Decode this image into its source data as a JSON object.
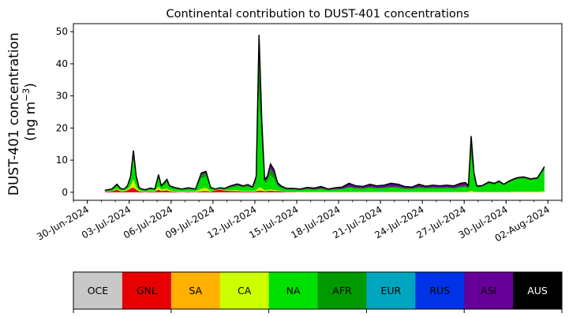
{
  "chart_data": {
    "type": "area",
    "title": "Continental contribution to DUST-401 concentrations",
    "ylabel_main": "DUST-401 concentration",
    "ylabel_unit_prefix": "(ng m",
    "ylabel_unit_sup": "−3",
    "ylabel_unit_suffix": ")",
    "xlabel": "",
    "stacked": true,
    "x_axis": {
      "type": "date",
      "range": [
        "2024-06-29",
        "2024-08-03"
      ],
      "tick_labels": [
        "30-Jun-2024",
        "03-Jul-2024",
        "06-Jul-2024",
        "09-Jul-2024",
        "12-Jul-2024",
        "15-Jul-2024",
        "18-Jul-2024",
        "21-Jul-2024",
        "24-Jul-2024",
        "27-Jul-2024",
        "30-Jul-2024",
        "02-Aug-2024"
      ],
      "tick_dates": [
        "2024-06-30",
        "2024-07-03",
        "2024-07-06",
        "2024-07-09",
        "2024-07-12",
        "2024-07-15",
        "2024-07-18",
        "2024-07-21",
        "2024-07-24",
        "2024-07-27",
        "2024-07-30",
        "2024-08-02"
      ],
      "minor_ticks": "daily"
    },
    "y_axis": {
      "range": [
        -2.5,
        52.5
      ],
      "ticks": [
        0,
        10,
        20,
        30,
        40,
        50
      ],
      "tick_labels": [
        "0",
        "10",
        "20",
        "30",
        "40",
        "50"
      ]
    },
    "grid": false,
    "x": [
      "2024-07-01",
      "2024-07-01",
      "2024-07-02",
      "2024-07-02",
      "2024-07-02",
      "2024-07-02",
      "2024-07-03",
      "2024-07-03",
      "2024-07-03",
      "2024-07-03",
      "2024-07-03",
      "2024-07-04",
      "2024-07-04",
      "2024-07-04",
      "2024-07-05",
      "2024-07-05",
      "2024-07-05",
      "2024-07-05",
      "2024-07-05",
      "2024-07-06",
      "2024-07-06",
      "2024-07-07",
      "2024-07-07",
      "2024-07-08",
      "2024-07-08",
      "2024-07-08",
      "2024-07-09",
      "2024-07-09",
      "2024-07-09",
      "2024-07-10",
      "2024-07-10",
      "2024-07-11",
      "2024-07-11",
      "2024-07-11",
      "2024-07-12",
      "2024-07-12",
      "2024-07-12",
      "2024-07-12",
      "2024-07-12",
      "2024-07-13",
      "2024-07-13",
      "2024-07-13",
      "2024-07-13",
      "2024-07-14",
      "2024-07-14",
      "2024-07-15",
      "2024-07-15",
      "2024-07-16",
      "2024-07-16",
      "2024-07-17",
      "2024-07-17",
      "2024-07-18",
      "2024-07-18",
      "2024-07-19",
      "2024-07-19",
      "2024-07-20",
      "2024-07-20",
      "2024-07-21",
      "2024-07-21",
      "2024-07-22",
      "2024-07-22",
      "2024-07-23",
      "2024-07-23",
      "2024-07-24",
      "2024-07-24",
      "2024-07-25",
      "2024-07-25",
      "2024-07-26",
      "2024-07-26",
      "2024-07-27",
      "2024-07-27",
      "2024-07-27",
      "2024-07-27",
      "2024-07-27",
      "2024-07-28",
      "2024-07-28",
      "2024-07-29",
      "2024-07-29",
      "2024-07-29",
      "2024-07-30",
      "2024-07-30",
      "2024-07-31",
      "2024-07-31",
      "2024-08-01",
      "2024-08-01"
    ],
    "total": [
      0.6,
      1.0,
      2.5,
      1.2,
      1.0,
      2.0,
      5.0,
      13.0,
      5.0,
      1.5,
      1.0,
      0.8,
      1.3,
      1.0,
      5.5,
      2.0,
      3.0,
      4.0,
      2.0,
      1.5,
      1.0,
      1.4,
      1.0,
      6.0,
      6.5,
      1.5,
      1.0,
      1.4,
      1.2,
      2.0,
      2.6,
      2.0,
      2.4,
      1.6,
      5.0,
      49.0,
      22.0,
      4.0,
      5.0,
      8.8,
      7.0,
      3.0,
      2.0,
      1.2,
      1.2,
      1.0,
      1.5,
      1.3,
      1.8,
      1.0,
      1.4,
      1.6,
      2.8,
      2.0,
      1.8,
      2.5,
      2.0,
      2.2,
      2.8,
      2.5,
      1.8,
      1.6,
      2.5,
      1.9,
      2.2,
      2.0,
      2.2,
      2.0,
      2.8,
      3.0,
      2.0,
      17.5,
      6.0,
      2.0,
      2.0,
      3.2,
      2.8,
      3.5,
      2.5,
      3.6,
      4.5,
      4.8,
      4.2,
      4.5,
      8.0
    ],
    "series": [
      {
        "name": "OCE",
        "color": "#c8c8c8",
        "values": [
          0.0,
          0.0,
          0.0,
          0.0,
          0.0,
          0.0,
          0.0,
          0.0,
          0.0,
          0.0,
          0.0,
          0.0,
          0.0,
          0.0,
          0.0,
          0.0,
          0.0,
          0.0,
          0.0,
          0.0,
          0.0,
          0.0,
          0.0,
          0.0,
          0.0,
          0.0,
          0.0,
          0.0,
          0.0,
          0.0,
          0.0,
          0.0,
          0.0,
          0.0,
          0.0,
          0.0,
          0.0,
          0.0,
          0.0,
          0.0,
          0.0,
          0.0,
          0.0,
          0.0,
          0.0,
          0.0,
          0.0,
          0.0,
          0.0,
          0.0,
          0.0,
          0.0,
          0.0,
          0.0,
          0.0,
          0.0,
          0.0,
          0.0,
          0.0,
          0.0,
          0.0,
          0.0,
          0.0,
          0.0,
          0.0,
          0.0,
          0.0,
          0.0,
          0.0,
          0.0,
          0.0,
          0.0,
          0.0,
          0.0,
          0.0,
          0.0,
          0.0,
          0.0,
          0.0,
          0.0,
          0.0,
          0.0,
          0.0,
          0.0,
          0.0
        ]
      },
      {
        "name": "GNL",
        "color": "#e60000",
        "values": [
          0.15,
          0.3,
          0.8,
          0.3,
          0.3,
          0.6,
          1.2,
          1.5,
          0.8,
          0.3,
          0.2,
          0.1,
          0.3,
          0.2,
          0.8,
          0.4,
          0.5,
          0.6,
          0.3,
          0.2,
          0.1,
          0.2,
          0.1,
          0.3,
          0.4,
          0.2,
          0.6,
          0.8,
          0.5,
          0.4,
          0.4,
          0.2,
          0.3,
          0.2,
          0.3,
          0.5,
          0.5,
          0.3,
          0.4,
          0.5,
          0.4,
          0.4,
          0.3,
          0.1,
          0.1,
          0.0,
          0.0,
          0.0,
          0.0,
          0.0,
          0.0,
          0.0,
          0.0,
          0.0,
          0.0,
          0.0,
          0.0,
          0.0,
          0.0,
          0.0,
          0.0,
          0.0,
          0.0,
          0.0,
          0.0,
          0.0,
          0.0,
          0.0,
          0.0,
          0.0,
          0.0,
          0.0,
          0.0,
          0.0,
          0.0,
          0.0,
          0.0,
          0.0,
          0.0,
          0.0,
          0.0,
          0.0,
          0.0,
          0.0,
          0.0
        ]
      },
      {
        "name": "SA",
        "color": "#ffb000",
        "values": [
          0.0,
          0.0,
          0.0,
          0.0,
          0.0,
          0.0,
          0.0,
          0.0,
          0.0,
          0.0,
          0.0,
          0.0,
          0.0,
          0.0,
          0.0,
          0.0,
          0.0,
          0.0,
          0.0,
          0.0,
          0.0,
          0.0,
          0.0,
          0.0,
          0.0,
          0.0,
          0.0,
          0.0,
          0.0,
          0.0,
          0.0,
          0.0,
          0.0,
          0.0,
          0.0,
          0.0,
          0.0,
          0.0,
          0.0,
          0.0,
          0.0,
          0.0,
          0.0,
          0.0,
          0.0,
          0.0,
          0.0,
          0.0,
          0.0,
          0.0,
          0.0,
          0.0,
          0.0,
          0.0,
          0.0,
          0.0,
          0.0,
          0.0,
          0.0,
          0.0,
          0.0,
          0.0,
          0.0,
          0.0,
          0.0,
          0.0,
          0.0,
          0.0,
          0.0,
          0.0,
          0.0,
          0.0,
          0.0,
          0.0,
          0.0,
          0.0,
          0.0,
          0.0,
          0.0,
          0.0,
          0.0,
          0.0,
          0.0,
          0.0,
          0.0
        ]
      },
      {
        "name": "CA",
        "color": "#ccff00",
        "values": [
          0.1,
          0.1,
          0.3,
          0.2,
          0.2,
          0.3,
          0.8,
          2.5,
          0.8,
          0.2,
          0.2,
          0.1,
          0.2,
          0.2,
          1.0,
          0.4,
          0.5,
          0.6,
          0.3,
          0.2,
          0.2,
          0.2,
          0.2,
          0.8,
          1.0,
          0.2,
          0.1,
          0.1,
          0.1,
          0.2,
          0.3,
          0.2,
          0.2,
          0.2,
          0.3,
          1.0,
          0.8,
          0.3,
          0.3,
          0.4,
          0.3,
          0.2,
          0.1,
          0.1,
          0.1,
          0.1,
          0.1,
          0.1,
          0.1,
          0.1,
          0.1,
          0.1,
          0.1,
          0.1,
          0.1,
          0.1,
          0.1,
          0.1,
          0.1,
          0.1,
          0.1,
          0.1,
          0.1,
          0.1,
          0.1,
          0.1,
          0.1,
          0.1,
          0.1,
          0.1,
          0.1,
          0.5,
          0.2,
          0.1,
          0.1,
          0.1,
          0.1,
          0.1,
          0.1,
          0.1,
          0.2,
          0.2,
          0.2,
          0.2,
          0.3
        ]
      },
      {
        "name": "NA",
        "color": "#00e000",
        "values": [
          0.2,
          0.4,
          0.9,
          0.4,
          0.3,
          0.7,
          2.0,
          6.5,
          2.2,
          0.6,
          0.4,
          0.4,
          0.5,
          0.4,
          2.5,
          0.8,
          1.3,
          1.8,
          0.9,
          0.7,
          0.4,
          0.6,
          0.4,
          3.2,
          3.5,
          0.7,
          0.2,
          0.3,
          0.3,
          0.8,
          1.2,
          1.1,
          1.3,
          0.8,
          2.5,
          30.0,
          13.0,
          2.2,
          2.6,
          4.5,
          3.5,
          1.4,
          0.9,
          0.6,
          0.6,
          0.5,
          0.8,
          0.6,
          0.9,
          0.5,
          0.7,
          0.8,
          1.3,
          1.0,
          0.9,
          1.2,
          1.0,
          1.1,
          1.3,
          1.2,
          0.9,
          0.8,
          1.2,
          1.0,
          1.1,
          1.0,
          1.1,
          1.0,
          1.4,
          1.5,
          1.0,
          11.0,
          3.8,
          1.4,
          1.5,
          2.6,
          2.2,
          2.9,
          2.0,
          3.0,
          3.8,
          4.1,
          3.5,
          3.8,
          6.8
        ]
      },
      {
        "name": "AFR",
        "color": "#009900",
        "values": [
          0.1,
          0.1,
          0.3,
          0.2,
          0.1,
          0.3,
          0.8,
          2.0,
          0.9,
          0.3,
          0.1,
          0.1,
          0.2,
          0.1,
          0.8,
          0.3,
          0.4,
          0.6,
          0.3,
          0.2,
          0.2,
          0.2,
          0.2,
          1.2,
          1.0,
          0.2,
          0.1,
          0.1,
          0.1,
          0.3,
          0.4,
          0.3,
          0.4,
          0.2,
          1.0,
          12.0,
          5.0,
          0.7,
          0.9,
          2.0,
          1.5,
          0.5,
          0.3,
          0.2,
          0.2,
          0.2,
          0.3,
          0.2,
          0.3,
          0.2,
          0.2,
          0.2,
          0.4,
          0.3,
          0.3,
          0.4,
          0.3,
          0.3,
          0.4,
          0.4,
          0.3,
          0.3,
          0.4,
          0.3,
          0.4,
          0.4,
          0.4,
          0.3,
          0.4,
          0.5,
          0.4,
          4.5,
          1.2,
          0.3,
          0.2,
          0.3,
          0.3,
          0.3,
          0.2,
          0.3,
          0.3,
          0.3,
          0.3,
          0.3,
          0.5
        ]
      },
      {
        "name": "EUR",
        "color": "#00a6bf",
        "values": [
          0.0,
          0.0,
          0.0,
          0.0,
          0.0,
          0.0,
          0.0,
          0.0,
          0.0,
          0.0,
          0.0,
          0.0,
          0.0,
          0.0,
          0.0,
          0.0,
          0.0,
          0.0,
          0.0,
          0.0,
          0.0,
          0.0,
          0.0,
          0.0,
          0.0,
          0.0,
          0.0,
          0.0,
          0.0,
          0.0,
          0.0,
          0.0,
          0.0,
          0.0,
          0.0,
          0.0,
          0.0,
          0.0,
          0.0,
          0.0,
          0.0,
          0.0,
          0.0,
          0.0,
          0.0,
          0.0,
          0.0,
          0.0,
          0.0,
          0.0,
          0.0,
          0.0,
          0.0,
          0.0,
          0.0,
          0.0,
          0.0,
          0.0,
          0.0,
          0.0,
          0.0,
          0.0,
          0.0,
          0.0,
          0.0,
          0.0,
          0.0,
          0.0,
          0.0,
          0.0,
          0.0,
          0.0,
          0.0,
          0.0,
          0.0,
          0.0,
          0.0,
          0.0,
          0.0,
          0.0,
          0.0,
          0.0,
          0.0,
          0.0,
          0.0
        ]
      },
      {
        "name": "RUS",
        "color": "#0033e6",
        "values": [
          0.0,
          0.0,
          0.0,
          0.0,
          0.0,
          0.0,
          0.0,
          0.0,
          0.0,
          0.0,
          0.0,
          0.0,
          0.0,
          0.0,
          0.0,
          0.0,
          0.0,
          0.0,
          0.0,
          0.0,
          0.0,
          0.0,
          0.0,
          0.0,
          0.0,
          0.0,
          0.0,
          0.0,
          0.0,
          0.0,
          0.0,
          0.0,
          0.0,
          0.0,
          0.0,
          0.0,
          0.0,
          0.0,
          0.0,
          0.0,
          0.0,
          0.0,
          0.0,
          0.0,
          0.0,
          0.0,
          0.0,
          0.0,
          0.0,
          0.0,
          0.0,
          0.0,
          0.0,
          0.0,
          0.0,
          0.0,
          0.0,
          0.0,
          0.0,
          0.0,
          0.0,
          0.0,
          0.0,
          0.0,
          0.0,
          0.0,
          0.0,
          0.0,
          0.0,
          0.0,
          0.0,
          0.0,
          0.0,
          0.0,
          0.0,
          0.0,
          0.0,
          0.0,
          0.0,
          0.0,
          0.0,
          0.0,
          0.0,
          0.0,
          0.0
        ]
      },
      {
        "name": "ASI",
        "color": "#660099",
        "values": [
          0.05,
          0.1,
          0.2,
          0.1,
          0.1,
          0.1,
          0.2,
          0.5,
          0.3,
          0.1,
          0.1,
          0.1,
          0.1,
          0.1,
          0.4,
          0.1,
          0.3,
          0.4,
          0.2,
          0.2,
          0.1,
          0.2,
          0.1,
          0.5,
          0.6,
          0.2,
          0.0,
          0.1,
          0.2,
          0.3,
          0.3,
          0.2,
          0.2,
          0.2,
          0.9,
          5.5,
          2.7,
          0.5,
          0.8,
          1.4,
          1.3,
          0.5,
          0.4,
          0.2,
          0.2,
          0.2,
          0.3,
          0.4,
          0.5,
          0.2,
          0.4,
          0.5,
          1.0,
          0.6,
          0.5,
          0.8,
          0.6,
          0.7,
          1.0,
          0.8,
          0.5,
          0.4,
          0.8,
          0.5,
          0.6,
          0.5,
          0.6,
          0.6,
          0.9,
          0.9,
          0.5,
          1.5,
          0.8,
          0.2,
          0.2,
          0.2,
          0.2,
          0.2,
          0.2,
          0.2,
          0.2,
          0.2,
          0.2,
          0.2,
          0.4
        ]
      },
      {
        "name": "AUS",
        "color": "#000000",
        "values": [
          0.0,
          0.0,
          0.0,
          0.0,
          0.0,
          0.0,
          0.0,
          0.0,
          0.0,
          0.0,
          0.0,
          0.0,
          0.0,
          0.0,
          0.0,
          0.0,
          0.0,
          0.0,
          0.0,
          0.0,
          0.0,
          0.0,
          0.0,
          0.0,
          0.0,
          0.0,
          0.0,
          0.0,
          0.0,
          0.0,
          0.0,
          0.0,
          0.0,
          0.0,
          0.0,
          0.0,
          0.0,
          0.0,
          0.0,
          0.0,
          0.0,
          0.0,
          0.0,
          0.0,
          0.0,
          0.0,
          0.0,
          0.0,
          0.0,
          0.0,
          0.0,
          0.0,
          0.0,
          0.0,
          0.0,
          0.0,
          0.0,
          0.0,
          0.0,
          0.0,
          0.0,
          0.0,
          0.0,
          0.0,
          0.0,
          0.0,
          0.0,
          0.0,
          0.0,
          0.0,
          0.0,
          0.0,
          0.0,
          0.0,
          0.0,
          0.0,
          0.0,
          0.0,
          0.0,
          0.0,
          0.0,
          0.0,
          0.0,
          0.0,
          0.0
        ]
      }
    ],
    "legend": {
      "placement": "bottom colorbar",
      "entries": [
        {
          "label": "OCE",
          "color": "#c8c8c8",
          "text_color": "#000000"
        },
        {
          "label": "GNL",
          "color": "#e60000",
          "text_color": "#000000"
        },
        {
          "label": "SA",
          "color": "#ffb000",
          "text_color": "#000000"
        },
        {
          "label": "CA",
          "color": "#ccff00",
          "text_color": "#000000"
        },
        {
          "label": "NA",
          "color": "#00e000",
          "text_color": "#000000"
        },
        {
          "label": "AFR",
          "color": "#009900",
          "text_color": "#000000"
        },
        {
          "label": "EUR",
          "color": "#00a6bf",
          "text_color": "#000000"
        },
        {
          "label": "RUS",
          "color": "#0033e6",
          "text_color": "#000000"
        },
        {
          "label": "ASI",
          "color": "#660099",
          "text_color": "#000000"
        },
        {
          "label": "AUS",
          "color": "#000000",
          "text_color": "#ffffff"
        }
      ]
    }
  }
}
